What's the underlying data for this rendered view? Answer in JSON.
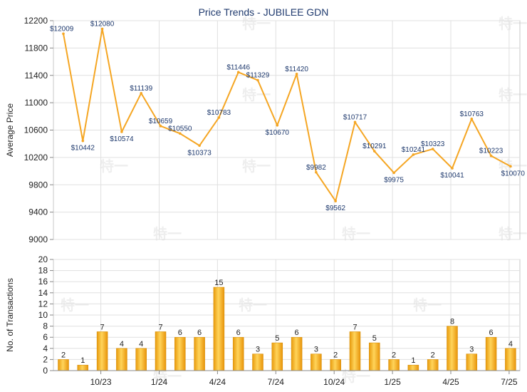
{
  "chart_data": [
    {
      "type": "line",
      "title": "Price Trends - JUBILEE GDN",
      "ylabel": "Average Price",
      "ylim": [
        9000,
        12200
      ],
      "yticks": [
        9000,
        9400,
        9800,
        10200,
        10600,
        11000,
        11400,
        11800,
        12200
      ],
      "xtick_labels": [
        "10/23",
        "1/24",
        "4/24",
        "7/24",
        "10/24",
        "1/25",
        "4/25",
        "7/25"
      ],
      "grid": true,
      "series": [
        {
          "color": "#f5a623",
          "values": [
            12009,
            10442,
            12080,
            10574,
            11139,
            10659,
            10550,
            10373,
            10783,
            11446,
            11329,
            10670,
            11420,
            9982,
            9562,
            10717,
            10291,
            9975,
            10241,
            10323,
            10041,
            10763,
            10223,
            10070
          ],
          "labels": [
            "$12009",
            "$10442",
            "$12080",
            "$10574",
            "$11139",
            "$10659",
            "$10550",
            "$10373",
            "$10783",
            "$11446",
            "$11329",
            "$10670",
            "$11420",
            "$9982",
            "$9562",
            "$10717",
            "$10291",
            "$9975",
            "$10241",
            "$10323",
            "$10041",
            "$10763",
            "$10223",
            "$10070"
          ]
        }
      ]
    },
    {
      "type": "bar",
      "ylabel": "No. of Transactions",
      "ylim": [
        0,
        20
      ],
      "yticks": [
        0,
        2,
        4,
        6,
        8,
        10,
        12,
        14,
        16,
        18,
        20
      ],
      "xtick_labels": [
        "10/23",
        "1/24",
        "4/24",
        "7/24",
        "10/24",
        "1/25",
        "4/25",
        "7/25"
      ],
      "grid": true,
      "series": [
        {
          "color": "#f5a623",
          "values": [
            2,
            1,
            7,
            4,
            4,
            7,
            6,
            6,
            15,
            6,
            3,
            5,
            6,
            3,
            2,
            7,
            5,
            2,
            1,
            2,
            8,
            3,
            6,
            4
          ]
        }
      ]
    }
  ],
  "watermark": "特一"
}
